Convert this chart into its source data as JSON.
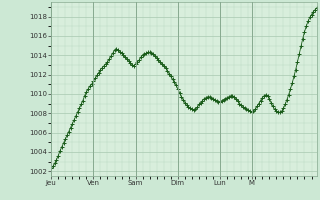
{
  "background_color": "#cce8d4",
  "plot_bg_color": "#d8eedc",
  "line_color": "#1a5c1a",
  "marker_color": "#1a5c1a",
  "grid_color_major": "#a8c8b0",
  "grid_color_minor": "#b8d8c0",
  "xtick_labels": [
    "Jeu",
    "Ven",
    "Sam",
    "Dim",
    "Lun",
    "M"
  ],
  "xtick_positions": [
    0,
    24,
    48,
    72,
    96,
    114
  ],
  "ylim": [
    1001.5,
    1019.5
  ],
  "yticks": [
    1002,
    1004,
    1006,
    1008,
    1010,
    1012,
    1014,
    1016,
    1018
  ],
  "figsize": [
    3.2,
    2.0
  ],
  "dpi": 100,
  "pressure_data": [
    1002.3,
    1002.5,
    1002.8,
    1003.2,
    1003.6,
    1004.1,
    1004.5,
    1004.9,
    1005.3,
    1005.7,
    1006.1,
    1006.5,
    1006.9,
    1007.3,
    1007.7,
    1008.1,
    1008.5,
    1008.9,
    1009.3,
    1009.8,
    1010.2,
    1010.5,
    1010.8,
    1011.0,
    1011.3,
    1011.6,
    1011.9,
    1012.2,
    1012.5,
    1012.7,
    1012.9,
    1013.1,
    1013.3,
    1013.6,
    1013.9,
    1014.2,
    1014.5,
    1014.6,
    1014.5,
    1014.3,
    1014.2,
    1014.0,
    1013.8,
    1013.6,
    1013.4,
    1013.2,
    1013.0,
    1012.9,
    1013.1,
    1013.3,
    1013.5,
    1013.8,
    1014.0,
    1014.1,
    1014.2,
    1014.3,
    1014.3,
    1014.2,
    1014.1,
    1013.9,
    1013.7,
    1013.5,
    1013.3,
    1013.1,
    1012.9,
    1012.7,
    1012.4,
    1012.1,
    1011.8,
    1011.5,
    1011.2,
    1010.9,
    1010.5,
    1010.1,
    1009.7,
    1009.4,
    1009.1,
    1008.8,
    1008.6,
    1008.5,
    1008.4,
    1008.3,
    1008.4,
    1008.6,
    1008.9,
    1009.1,
    1009.3,
    1009.5,
    1009.6,
    1009.7,
    1009.7,
    1009.6,
    1009.5,
    1009.4,
    1009.3,
    1009.2,
    1009.2,
    1009.3,
    1009.4,
    1009.5,
    1009.6,
    1009.7,
    1009.8,
    1009.8,
    1009.7,
    1009.5,
    1009.3,
    1009.0,
    1008.8,
    1008.6,
    1008.5,
    1008.4,
    1008.3,
    1008.2,
    1008.1,
    1008.2,
    1008.4,
    1008.7,
    1009.0,
    1009.3,
    1009.6,
    1009.8,
    1009.9,
    1009.8,
    1009.5,
    1009.1,
    1008.7,
    1008.4,
    1008.2,
    1008.1,
    1008.1,
    1008.2,
    1008.5,
    1008.9,
    1009.4,
    1009.9,
    1010.5,
    1011.1,
    1011.8,
    1012.5,
    1013.3,
    1014.1,
    1014.9,
    1015.7,
    1016.4,
    1017.0,
    1017.5,
    1017.9,
    1018.2,
    1018.5,
    1018.7,
    1018.9
  ]
}
